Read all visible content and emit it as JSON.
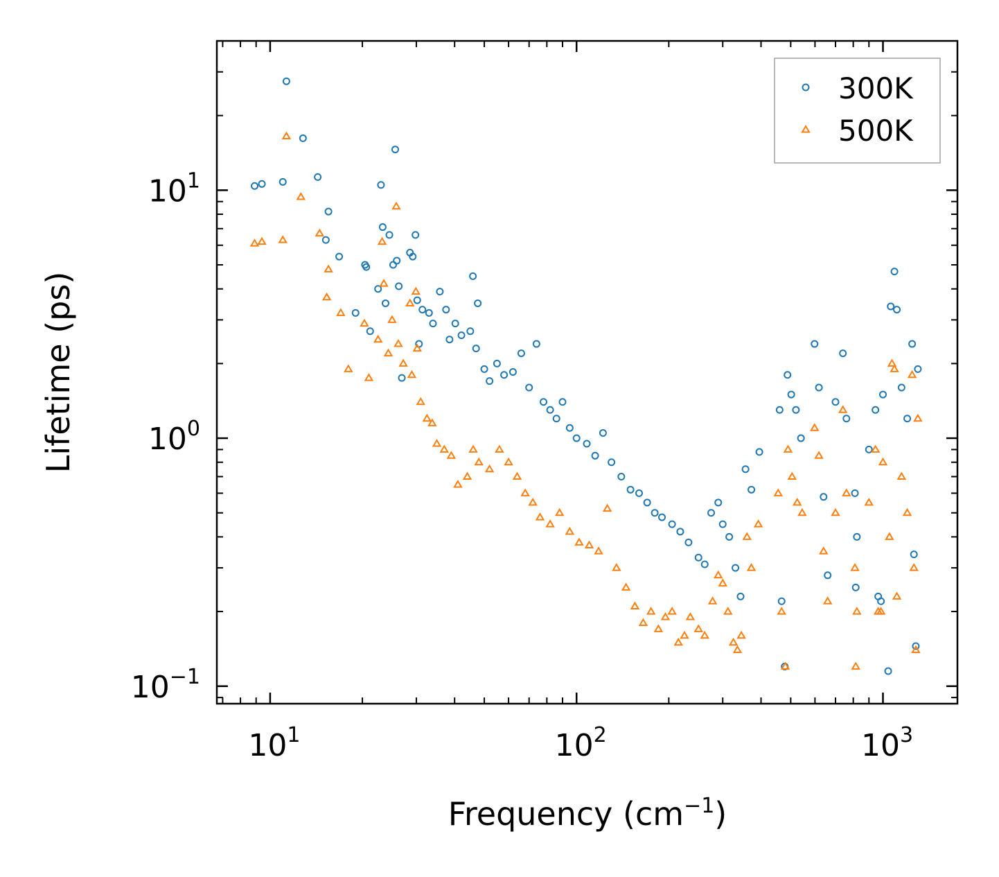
{
  "chart_data": {
    "type": "scatter",
    "title": "",
    "xlabel": {
      "base": "Frequency (cm",
      "sup": "−1",
      "tail": ")"
    },
    "ylabel": "Lifetime (ps)",
    "xscale": "log",
    "yscale": "log",
    "xlim": [
      6.7,
      1750
    ],
    "ylim": [
      0.085,
      40
    ],
    "xticks": [
      {
        "value": 10,
        "base": "10",
        "exp": "1"
      },
      {
        "value": 100,
        "base": "10",
        "exp": "2"
      },
      {
        "value": 1000,
        "base": "10",
        "exp": "3"
      }
    ],
    "yticks": [
      {
        "value": 0.1,
        "base": "10",
        "exp": "−1"
      },
      {
        "value": 1,
        "base": "10",
        "exp": "0"
      },
      {
        "value": 10,
        "base": "10",
        "exp": "1"
      }
    ],
    "legend_position": "top-right",
    "series": [
      {
        "name": "300K",
        "marker": "circle",
        "color": "#1f77b4",
        "points": [
          [
            8.9,
            10.4
          ],
          [
            9.4,
            10.6
          ],
          [
            11.0,
            10.8
          ],
          [
            11.3,
            27.5
          ],
          [
            12.8,
            16.2
          ],
          [
            14.3,
            11.3
          ],
          [
            15.2,
            6.3
          ],
          [
            15.5,
            8.2
          ],
          [
            16.8,
            5.4
          ],
          [
            19.0,
            3.2
          ],
          [
            20.4,
            5.0
          ],
          [
            20.6,
            4.9
          ],
          [
            21.2,
            2.7
          ],
          [
            22.5,
            4.0
          ],
          [
            23.0,
            10.5
          ],
          [
            23.3,
            7.1
          ],
          [
            23.8,
            3.5
          ],
          [
            24.5,
            6.6
          ],
          [
            25.2,
            5.0
          ],
          [
            25.6,
            14.6
          ],
          [
            25.9,
            5.2
          ],
          [
            26.3,
            4.1
          ],
          [
            26.9,
            1.75
          ],
          [
            28.6,
            5.6
          ],
          [
            29.2,
            5.4
          ],
          [
            29.8,
            6.6
          ],
          [
            30.2,
            3.6
          ],
          [
            30.6,
            2.4
          ],
          [
            31.4,
            3.3
          ],
          [
            33.0,
            3.2
          ],
          [
            34.0,
            2.9
          ],
          [
            35.8,
            3.9
          ],
          [
            37.5,
            3.3
          ],
          [
            38.5,
            2.5
          ],
          [
            40.2,
            2.9
          ],
          [
            42.1,
            2.6
          ],
          [
            45.0,
            2.7
          ],
          [
            45.9,
            4.5
          ],
          [
            47.6,
            3.5
          ],
          [
            47.0,
            2.3
          ],
          [
            50.0,
            1.9
          ],
          [
            52.0,
            1.7
          ],
          [
            55.0,
            2.0
          ],
          [
            58.0,
            1.8
          ],
          [
            62.0,
            1.85
          ],
          [
            66.0,
            2.2
          ],
          [
            70.0,
            1.6
          ],
          [
            74.0,
            2.4
          ],
          [
            78.0,
            1.4
          ],
          [
            82.0,
            1.3
          ],
          [
            86.0,
            1.2
          ],
          [
            90.0,
            1.4
          ],
          [
            95.0,
            1.1
          ],
          [
            100.0,
            1.0
          ],
          [
            108.0,
            0.95
          ],
          [
            115.0,
            0.85
          ],
          [
            122.0,
            1.05
          ],
          [
            130.0,
            0.8
          ],
          [
            140.0,
            0.7
          ],
          [
            150.0,
            0.62
          ],
          [
            160.0,
            0.6
          ],
          [
            170.0,
            0.55
          ],
          [
            180.0,
            0.5
          ],
          [
            190.0,
            0.48
          ],
          [
            205.0,
            0.45
          ],
          [
            218.0,
            0.42
          ],
          [
            232.0,
            0.38
          ],
          [
            250.0,
            0.33
          ],
          [
            262.0,
            0.31
          ],
          [
            275.0,
            0.5
          ],
          [
            290.0,
            0.55
          ],
          [
            300.0,
            0.45
          ],
          [
            315.0,
            0.4
          ],
          [
            330.0,
            0.3
          ],
          [
            343.0,
            0.23
          ],
          [
            356.0,
            0.75
          ],
          [
            372.0,
            0.62
          ],
          [
            395.0,
            0.88
          ],
          [
            460.0,
            1.3
          ],
          [
            467.0,
            0.22
          ],
          [
            478.0,
            0.12
          ],
          [
            488.0,
            1.8
          ],
          [
            502.0,
            1.5
          ],
          [
            520.0,
            1.3
          ],
          [
            540.0,
            1.0
          ],
          [
            598.0,
            2.4
          ],
          [
            618.0,
            1.6
          ],
          [
            640.0,
            0.58
          ],
          [
            660.0,
            0.28
          ],
          [
            700.0,
            1.4
          ],
          [
            740.0,
            2.2
          ],
          [
            760.0,
            1.2
          ],
          [
            810.0,
            0.6
          ],
          [
            815.0,
            0.25
          ],
          [
            822.0,
            0.4
          ],
          [
            900.0,
            0.9
          ],
          [
            945.0,
            1.3
          ],
          [
            965.0,
            0.23
          ],
          [
            985.0,
            0.22
          ],
          [
            1000.0,
            1.5
          ],
          [
            1040.0,
            0.115
          ],
          [
            1060.0,
            3.4
          ],
          [
            1090.0,
            4.7
          ],
          [
            1110.0,
            3.3
          ],
          [
            1150.0,
            1.6
          ],
          [
            1200.0,
            1.2
          ],
          [
            1245.0,
            2.4
          ],
          [
            1262.0,
            0.34
          ],
          [
            1280.0,
            0.145
          ],
          [
            1300.0,
            1.9
          ]
        ]
      },
      {
        "name": "500K",
        "marker": "triangle",
        "color": "#ff7f0e",
        "points": [
          [
            8.9,
            6.1
          ],
          [
            9.4,
            6.2
          ],
          [
            11.0,
            6.3
          ],
          [
            11.3,
            16.5
          ],
          [
            12.6,
            9.4
          ],
          [
            14.5,
            6.7
          ],
          [
            15.3,
            3.7
          ],
          [
            15.5,
            4.8
          ],
          [
            17.0,
            3.2
          ],
          [
            18.0,
            1.9
          ],
          [
            20.3,
            2.9
          ],
          [
            21.0,
            1.75
          ],
          [
            22.5,
            2.5
          ],
          [
            23.2,
            6.2
          ],
          [
            23.5,
            4.2
          ],
          [
            24.3,
            2.2
          ],
          [
            25.0,
            3.0
          ],
          [
            25.8,
            8.6
          ],
          [
            26.2,
            2.4
          ],
          [
            27.2,
            2.0
          ],
          [
            28.6,
            3.5
          ],
          [
            29.0,
            1.8
          ],
          [
            29.9,
            3.9
          ],
          [
            30.2,
            2.3
          ],
          [
            31.0,
            1.4
          ],
          [
            32.5,
            1.2
          ],
          [
            33.8,
            1.15
          ],
          [
            35.0,
            0.95
          ],
          [
            37.0,
            0.9
          ],
          [
            39.0,
            0.85
          ],
          [
            41.0,
            0.65
          ],
          [
            44.0,
            0.7
          ],
          [
            46.0,
            0.9
          ],
          [
            48.0,
            0.8
          ],
          [
            52.0,
            0.75
          ],
          [
            56.0,
            0.9
          ],
          [
            60.0,
            0.8
          ],
          [
            64.0,
            0.7
          ],
          [
            68.0,
            0.6
          ],
          [
            72.0,
            0.55
          ],
          [
            76.0,
            0.48
          ],
          [
            82.0,
            0.45
          ],
          [
            88.0,
            0.5
          ],
          [
            95.0,
            0.42
          ],
          [
            102.0,
            0.38
          ],
          [
            110.0,
            0.37
          ],
          [
            118.0,
            0.35
          ],
          [
            126.0,
            0.52
          ],
          [
            135.0,
            0.3
          ],
          [
            145.0,
            0.25
          ],
          [
            155.0,
            0.21
          ],
          [
            165.0,
            0.18
          ],
          [
            175.0,
            0.2
          ],
          [
            185.0,
            0.17
          ],
          [
            195.0,
            0.19
          ],
          [
            205.0,
            0.2
          ],
          [
            215.0,
            0.15
          ],
          [
            225.0,
            0.16
          ],
          [
            235.0,
            0.19
          ],
          [
            250.0,
            0.17
          ],
          [
            262.0,
            0.16
          ],
          [
            278.0,
            0.22
          ],
          [
            290.0,
            0.28
          ],
          [
            300.0,
            0.26
          ],
          [
            312.0,
            0.2
          ],
          [
            325.0,
            0.15
          ],
          [
            335.0,
            0.14
          ],
          [
            345.0,
            0.16
          ],
          [
            360.0,
            0.4
          ],
          [
            372.0,
            0.3
          ],
          [
            392.0,
            0.45
          ],
          [
            455.0,
            0.6
          ],
          [
            467.0,
            0.2
          ],
          [
            480.0,
            0.12
          ],
          [
            490.0,
            0.9
          ],
          [
            505.0,
            0.7
          ],
          [
            525.0,
            0.55
          ],
          [
            545.0,
            0.5
          ],
          [
            598.0,
            1.1
          ],
          [
            618.0,
            0.85
          ],
          [
            640.0,
            0.35
          ],
          [
            660.0,
            0.22
          ],
          [
            700.0,
            0.5
          ],
          [
            740.0,
            1.3
          ],
          [
            760.0,
            0.6
          ],
          [
            810.0,
            0.3
          ],
          [
            815.0,
            0.12
          ],
          [
            822.0,
            0.2
          ],
          [
            900.0,
            0.55
          ],
          [
            945.0,
            0.9
          ],
          [
            965.0,
            0.2
          ],
          [
            985.0,
            0.2
          ],
          [
            1000.0,
            0.8
          ],
          [
            1050.0,
            0.4
          ],
          [
            1070.0,
            2.0
          ],
          [
            1090.0,
            1.9
          ],
          [
            1110.0,
            0.23
          ],
          [
            1150.0,
            0.7
          ],
          [
            1200.0,
            0.5
          ],
          [
            1245.0,
            1.8
          ],
          [
            1262.0,
            0.3
          ],
          [
            1280.0,
            0.14
          ],
          [
            1300.0,
            1.2
          ]
        ]
      }
    ]
  }
}
